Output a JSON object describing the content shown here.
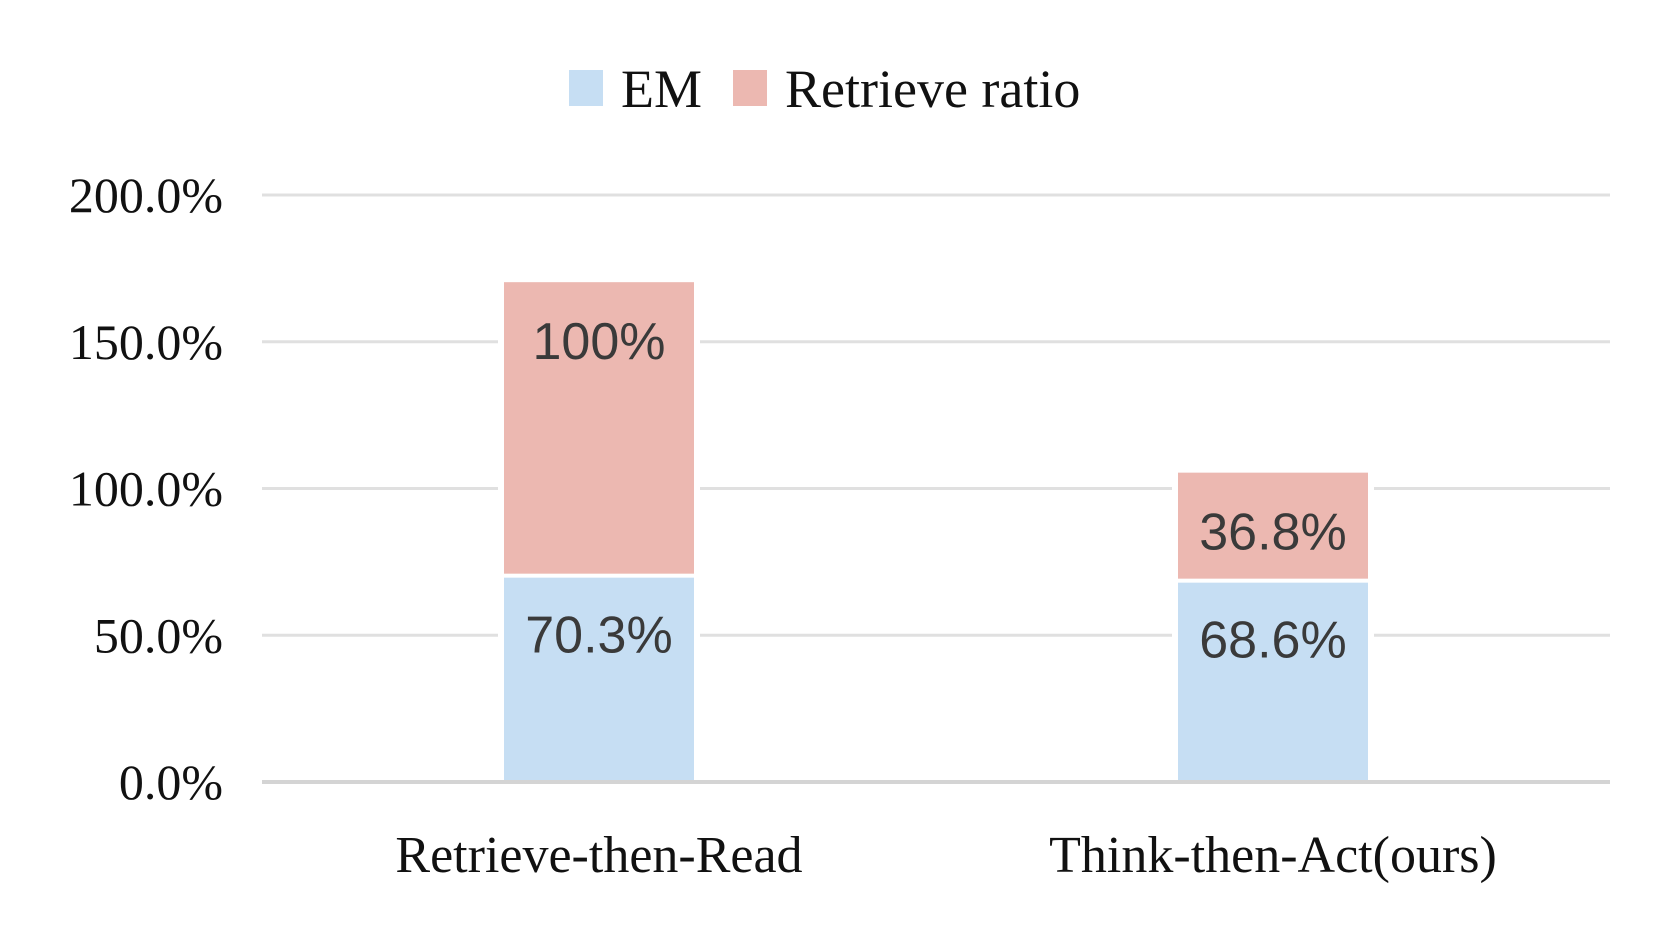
{
  "chart_data": {
    "type": "bar",
    "stacked": true,
    "categories": [
      "Retrieve-then-Read",
      "Think-then-Act(ours)"
    ],
    "series": [
      {
        "name": "EM",
        "color": "#c6def3",
        "values": [
          70.3,
          68.6
        ],
        "labels": [
          "70.3%",
          "68.6%"
        ]
      },
      {
        "name": "Retrieve ratio",
        "color": "#ecb8b1",
        "values": [
          100,
          36.8
        ],
        "labels": [
          "100%",
          "36.8%"
        ]
      }
    ],
    "ylim": [
      0,
      200
    ],
    "yticks": [
      0,
      50,
      100,
      150,
      200
    ],
    "ytick_labels": [
      "0.0%",
      "50.0%",
      "100.0%",
      "150.0%",
      "200.0%"
    ],
    "grid": true,
    "legend_position": "top-center",
    "gridline_color": "#e0e0e0"
  }
}
